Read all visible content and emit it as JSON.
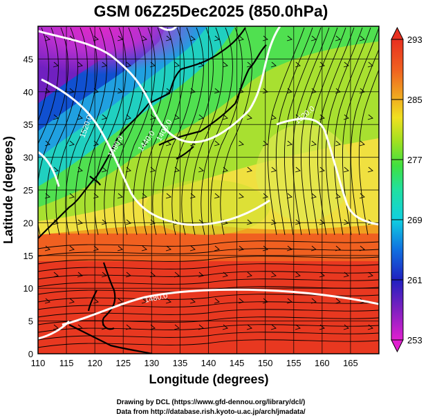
{
  "title": "GSM 06Z25Dec2025 (850.0hPa)",
  "x_axis": {
    "label": "Longitude (degrees)",
    "range": [
      110,
      170
    ],
    "ticks": [
      "110",
      "115",
      "120",
      "125",
      "130",
      "135",
      "140",
      "145",
      "150",
      "155",
      "160",
      "165"
    ]
  },
  "y_axis": {
    "label": "Latitude  (degrees)",
    "range": [
      0,
      50
    ],
    "ticks": [
      "0",
      "5",
      "10",
      "15",
      "20",
      "25",
      "30",
      "35",
      "40",
      "45"
    ]
  },
  "colorbar": {
    "range": [
      253,
      293
    ],
    "ticks": [
      "253",
      "261",
      "269",
      "277",
      "285",
      "293"
    ],
    "colors": [
      "#e020d0",
      "#8020c0",
      "#2020c0",
      "#1070e0",
      "#10d0e0",
      "#20e0a0",
      "#40e040",
      "#a0e020",
      "#f0e020",
      "#f0a020",
      "#f06020",
      "#e83020"
    ]
  },
  "contours": {
    "labels": [
      "1520.0",
      "1480.0",
      "1440.0",
      "1400.0",
      "1520.0",
      "1480.0"
    ],
    "color": "#ffffff"
  },
  "credits": {
    "line1": "Drawing by DCL (https://www.gfd-dennou.org/library/dcl/)",
    "line2": "Data from http://database.rish.kyoto-u.ac.jp/arch/jmadata/"
  }
}
